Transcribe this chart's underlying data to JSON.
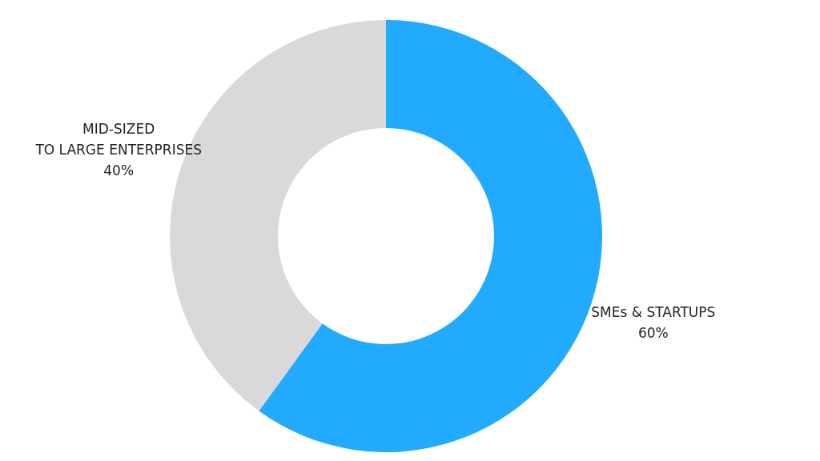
{
  "chart_data": {
    "type": "donut",
    "categories": [
      "SMEs & STARTUPS",
      "MID-SIZED\nTO LARGE ENTERPRISES"
    ],
    "values": [
      60,
      40
    ],
    "colors": [
      "#22aaff",
      "#d9d9d9"
    ],
    "value_labels": [
      "60%",
      "40%"
    ],
    "legend": false
  }
}
